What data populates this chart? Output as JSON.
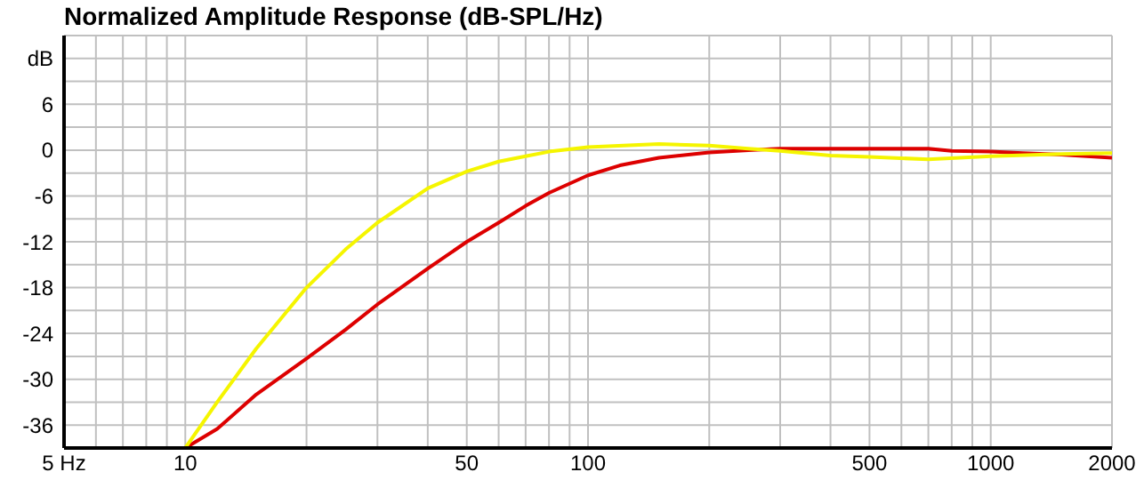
{
  "chart_data": {
    "type": "line",
    "title": "Normalized Amplitude Response (dB-SPL/Hz)",
    "log": "x",
    "grid": true,
    "xlim": [
      5,
      2000
    ],
    "xticks": [
      {
        "value": 5,
        "label": "5 Hz"
      },
      {
        "value": 6,
        "label": null
      },
      {
        "value": 7,
        "label": null
      },
      {
        "value": 8,
        "label": null
      },
      {
        "value": 9,
        "label": null
      },
      10,
      {
        "value": 20,
        "label": null
      },
      {
        "value": 30,
        "label": null
      },
      {
        "value": 40,
        "label": null
      },
      50,
      {
        "value": 60,
        "label": null
      },
      {
        "value": 70,
        "label": null
      },
      {
        "value": 80,
        "label": null
      },
      {
        "value": 90,
        "label": null
      },
      100,
      {
        "value": 200,
        "label": null
      },
      {
        "value": 300,
        "label": null
      },
      {
        "value": 400,
        "label": null
      },
      500,
      {
        "value": 600,
        "label": null
      },
      {
        "value": 700,
        "label": null
      },
      {
        "value": 800,
        "label": null
      },
      {
        "value": 900,
        "label": null
      },
      1000,
      2000
    ],
    "ylim": [
      -39,
      15
    ],
    "yticks": [
      {
        "value": -36,
        "label": "-36"
      },
      {
        "value": -33,
        "label": null
      },
      -30,
      {
        "value": -27,
        "label": null
      },
      -24,
      {
        "value": -21,
        "label": null
      },
      -18,
      {
        "value": -15,
        "label": null
      },
      -12,
      {
        "value": -9,
        "label": null
      },
      -6,
      {
        "value": -3,
        "label": null
      },
      0,
      {
        "value": 3,
        "label": null
      },
      6,
      {
        "value": 9,
        "label": null
      },
      {
        "value": 12,
        "label": "dB"
      }
    ],
    "series": [
      {
        "color": "#dd0000",
        "x": [
          10,
          12,
          15,
          20,
          25,
          30,
          40,
          50,
          60,
          70,
          80,
          100,
          120,
          150,
          200,
          250,
          300,
          500,
          700,
          800,
          1000,
          1200,
          1500,
          2000
        ],
        "values": [
          -39,
          -36.5,
          -32,
          -27.3,
          -23.5,
          -20.2,
          -15.5,
          -12,
          -9.5,
          -7.3,
          -5.6,
          -3.3,
          -2,
          -1,
          -0.3,
          0,
          0.2,
          0.2,
          0.2,
          -0.1,
          -0.2,
          -0.4,
          -0.6,
          -1
        ]
      },
      {
        "color": "#f5f500",
        "x": [
          10,
          12,
          15,
          20,
          25,
          30,
          40,
          50,
          60,
          70,
          80,
          100,
          150,
          200,
          250,
          300,
          400,
          500,
          700,
          1000,
          1500,
          2000
        ],
        "values": [
          -39,
          -33,
          -26,
          -18,
          -13,
          -9.5,
          -5,
          -2.8,
          -1.5,
          -0.8,
          -0.2,
          0.4,
          0.8,
          0.6,
          0.2,
          -0.1,
          -0.7,
          -0.9,
          -1.2,
          -0.8,
          -0.5,
          -0.4
        ]
      }
    ]
  }
}
